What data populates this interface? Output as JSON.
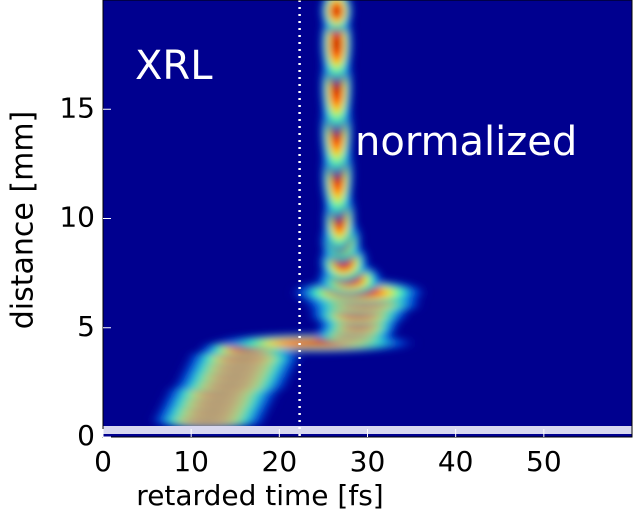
{
  "chart_data": {
    "type": "heatmap",
    "xlabel": "retarded time [fs]",
    "ylabel": "distance [mm]",
    "xlim": [
      0,
      60
    ],
    "ylim": [
      0,
      20
    ],
    "xticks": [
      0,
      10,
      20,
      30,
      40,
      50
    ],
    "yticks": [
      0,
      5,
      10,
      15
    ],
    "annotations": [
      "XRL",
      "normalized"
    ],
    "marker_line_x": 22.3,
    "ridge": {
      "distance": [
        0.8,
        1.2,
        1.6,
        2.0,
        2.4,
        2.8,
        3.2,
        3.6,
        4.0,
        4.3,
        4.7,
        5.1,
        5.6,
        6.1,
        6.6,
        7.2,
        8.0,
        9.0,
        10.0,
        12.0,
        14.0,
        16.0,
        18.0,
        19.5
      ],
      "time": [
        12,
        12.5,
        13,
        13.5,
        14.5,
        15,
        15.5,
        16,
        16.5,
        24,
        28.5,
        29,
        29,
        29.5,
        29,
        28,
        27.3,
        27,
        26.8,
        26.6,
        26.5,
        26.5,
        26.5,
        26.5
      ],
      "width": [
        7,
        7,
        7,
        7,
        7,
        7,
        7,
        7,
        6,
        12,
        5,
        5,
        6,
        7,
        8,
        4,
        3,
        2.5,
        2,
        2,
        2,
        2,
        2,
        2
      ]
    }
  }
}
